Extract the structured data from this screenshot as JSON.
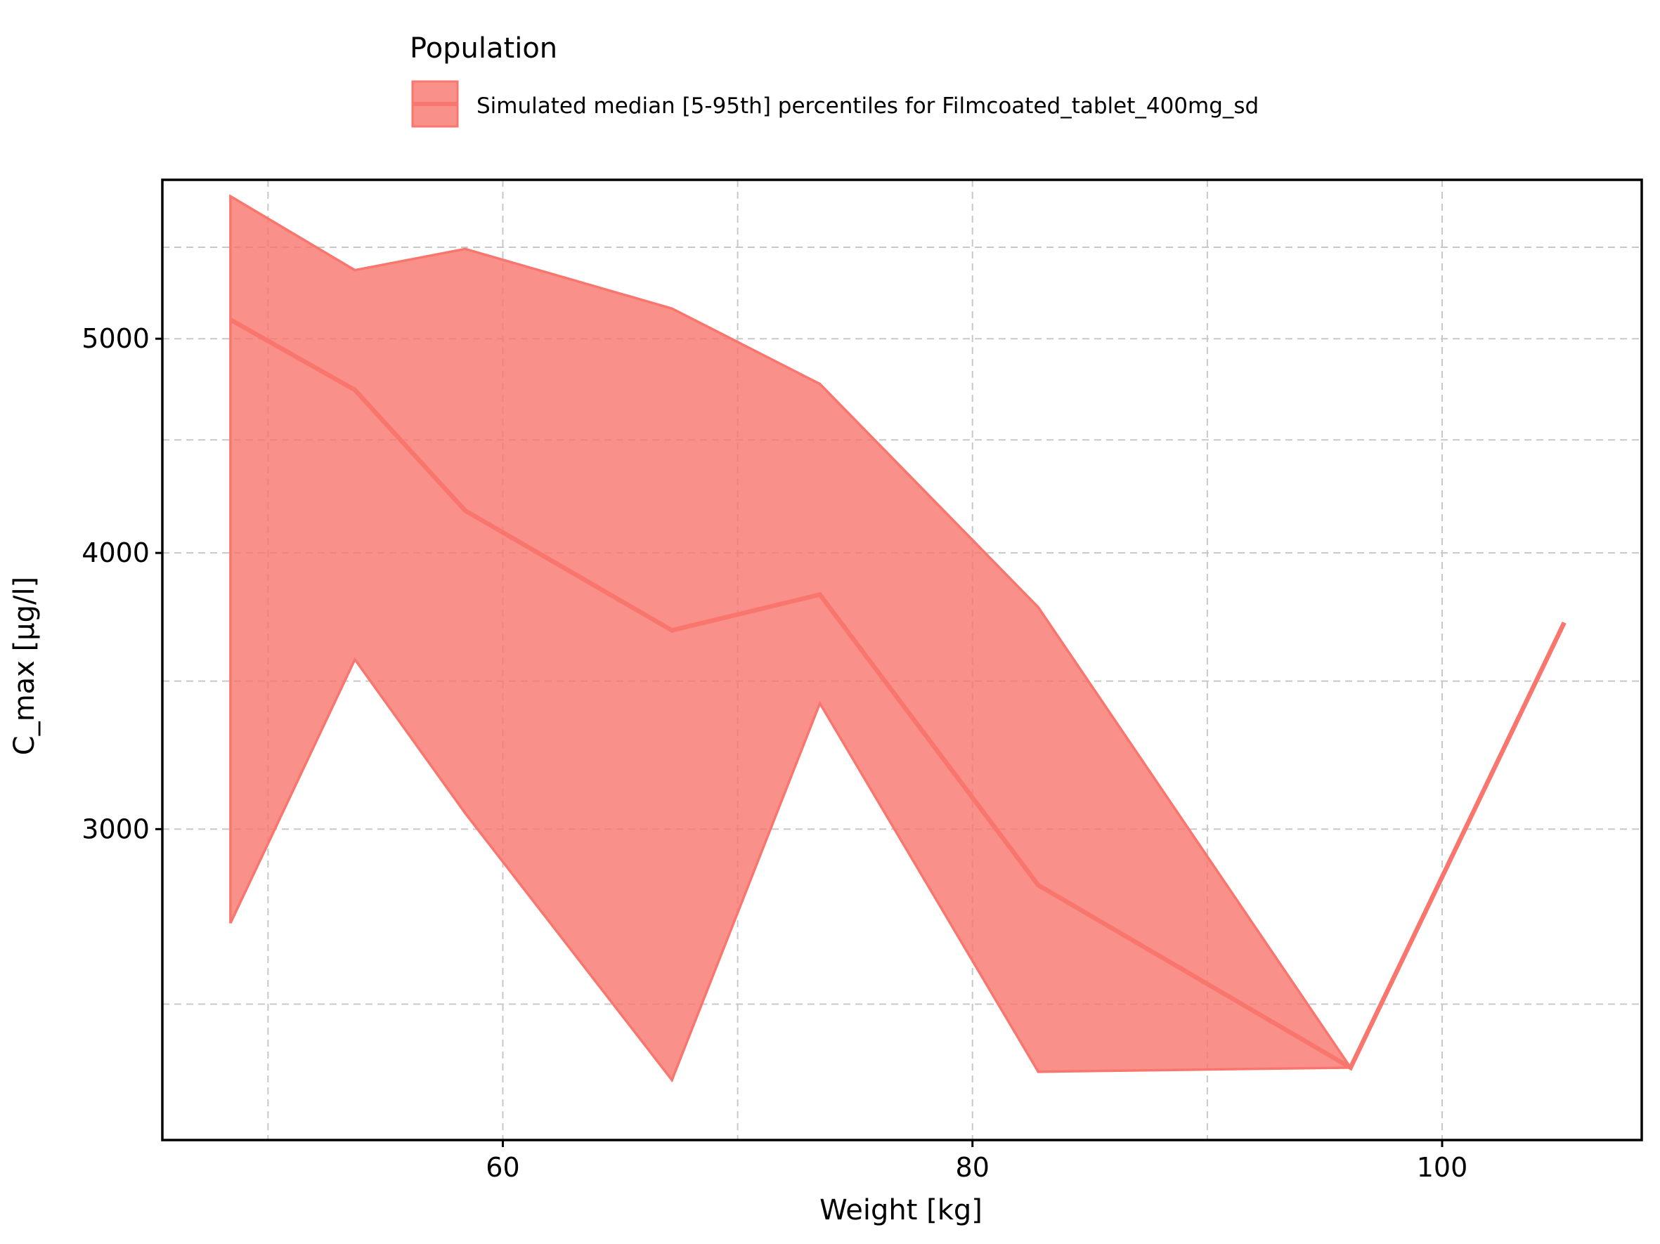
{
  "legend": {
    "title": "Population",
    "entries": [
      "Simulated median [5-95th] percentiles for Filmcoated_tablet_400mg_sd"
    ]
  },
  "colors": {
    "series": "#f8766d",
    "band_fill": "#f8766d",
    "band_opacity": 0.8,
    "grid": "#c8c8c8",
    "axis": "#000000"
  },
  "chart_data": {
    "type": "area",
    "xlabel": "Weight [kg]",
    "ylabel": "C_max [µg/l]",
    "x_scale": "linear",
    "y_scale": "log",
    "xlim": [
      45.5,
      108.5
    ],
    "ylim": [
      2170,
      5900
    ],
    "x_ticks": [
      60,
      80,
      100
    ],
    "x_tick_labels": [
      "60",
      "80",
      "100"
    ],
    "x_minor_grid": [
      50,
      70,
      90
    ],
    "y_ticks": [
      3000,
      4000,
      5000
    ],
    "y_tick_labels": [
      "3000",
      "4000",
      "5000"
    ],
    "y_minor_grid": [
      2500,
      3500,
      4500,
      5500
    ],
    "grid": true,
    "legend_position": "top",
    "series": [
      {
        "name": "Simulated median [5-95th] percentiles for Filmcoated_tablet_400mg_sd",
        "x": [
          48.4,
          53.7,
          58.4,
          67.2,
          73.5,
          82.8,
          96.1,
          105.2
        ],
        "median": [
          5100,
          4740,
          4180,
          3690,
          3830,
          2830,
          2340,
          3720
        ],
        "lower": [
          2720,
          3580,
          3050,
          2310,
          3420,
          2330,
          2340,
          3720
        ],
        "upper": [
          5800,
          5370,
          5490,
          5160,
          4770,
          3780,
          2340,
          3720
        ]
      }
    ]
  }
}
